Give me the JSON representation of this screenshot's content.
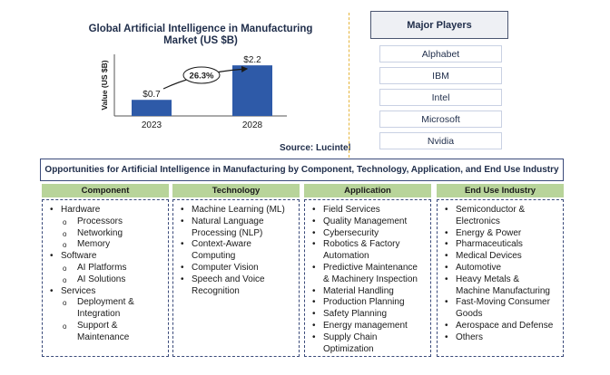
{
  "chart_data": {
    "type": "bar",
    "title": "Global Artificial Intelligence in Manufacturing Market (US $B)",
    "ylabel": "Value (US $B)",
    "categories": [
      "2023",
      "2028"
    ],
    "values": [
      0.7,
      2.2
    ],
    "value_labels": [
      "$0.7",
      "$2.2"
    ],
    "cagr_label": "26.3%",
    "ylim": [
      0,
      2.6
    ],
    "bar_color": "#2e5aa8"
  },
  "source": "Source: Lucintel",
  "players": {
    "title": "Major Players",
    "items": [
      "Alphabet",
      "IBM",
      "Intel",
      "Microsoft",
      "Nvidia"
    ]
  },
  "opportunities": {
    "title": "Opportunities for Artificial Intelligence in Manufacturing by Component, Technology, Application, and End Use Industry",
    "columns": [
      {
        "header": "Component",
        "items": [
          {
            "text": "Hardware",
            "level": 1
          },
          {
            "text": "Processors",
            "level": 2
          },
          {
            "text": "Networking",
            "level": 2
          },
          {
            "text": "Memory",
            "level": 2
          },
          {
            "text": "Software",
            "level": 1
          },
          {
            "text": "AI Platforms",
            "level": 2
          },
          {
            "text": "AI Solutions",
            "level": 2
          },
          {
            "text": "Services",
            "level": 1
          },
          {
            "text": "Deployment &",
            "level": 2
          },
          {
            "text": "Integration",
            "level": 3
          },
          {
            "text": "Support &",
            "level": 2
          },
          {
            "text": "Maintenance",
            "level": 3
          }
        ]
      },
      {
        "header": "Technology",
        "items": [
          {
            "text": "Machine Learning (ML)",
            "level": 1
          },
          {
            "text": "Natural Language",
            "level": 1
          },
          {
            "text": "Processing (NLP)",
            "level": 0
          },
          {
            "text": "Context-Aware",
            "level": 1
          },
          {
            "text": "Computing",
            "level": 0
          },
          {
            "text": "Computer Vision",
            "level": 1
          },
          {
            "text": "Speech and Voice",
            "level": 1
          },
          {
            "text": "Recognition",
            "level": 0
          }
        ]
      },
      {
        "header": "Application",
        "items": [
          {
            "text": "Field Services",
            "level": 1
          },
          {
            "text": "Quality Management",
            "level": 1
          },
          {
            "text": "Cybersecurity",
            "level": 1
          },
          {
            "text": "Robotics & Factory",
            "level": 1
          },
          {
            "text": "Automation",
            "level": 0
          },
          {
            "text": "Predictive Maintenance",
            "level": 1
          },
          {
            "text": "& Machinery Inspection",
            "level": 0
          },
          {
            "text": "Material Handling",
            "level": 1
          },
          {
            "text": "Production Planning",
            "level": 1
          },
          {
            "text": "Safety Planning",
            "level": 1
          },
          {
            "text": "Energy management",
            "level": 1
          },
          {
            "text": "Supply Chain",
            "level": 1
          },
          {
            "text": "Optimization",
            "level": 0
          }
        ]
      },
      {
        "header": "End Use Industry",
        "items": [
          {
            "text": "Semiconductor &",
            "level": 1
          },
          {
            "text": "Electronics",
            "level": 0
          },
          {
            "text": "Energy & Power",
            "level": 1
          },
          {
            "text": "Pharmaceuticals",
            "level": 1
          },
          {
            "text": "Medical Devices",
            "level": 1
          },
          {
            "text": "Automotive",
            "level": 1
          },
          {
            "text": "Heavy Metals &",
            "level": 1
          },
          {
            "text": "Machine Manufacturing",
            "level": 0
          },
          {
            "text": "Fast-Moving Consumer",
            "level": 1
          },
          {
            "text": "Goods",
            "level": 0
          },
          {
            "text": "Aerospace and Defense",
            "level": 1
          },
          {
            "text": "Others",
            "level": 1
          }
        ]
      }
    ]
  }
}
